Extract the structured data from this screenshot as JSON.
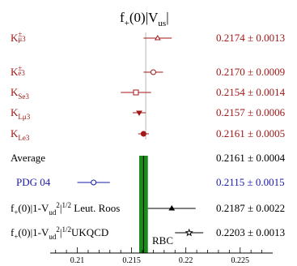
{
  "chart_data": {
    "type": "scatter",
    "title_parts": {
      "f": "f",
      "plus": "+",
      "zero": "(0)|V",
      "us": "us",
      "bar": "|"
    },
    "xlim": [
      0.2075,
      0.228
    ],
    "xticks": [
      0.21,
      0.215,
      0.22,
      0.225
    ],
    "xtick_labels": [
      "0.21",
      "0.215",
      "0.22",
      "0.225"
    ],
    "average_band": {
      "value": 0.2161,
      "error": 0.0004,
      "color": "#1a8a1a"
    },
    "colors": {
      "red": "#a01818",
      "black": "#000000",
      "blue": "#1a1aa8"
    },
    "rows": [
      {
        "label_main": "K",
        "label_sup": "±",
        "label_sub": "μ3",
        "value": 0.2174,
        "error": 0.0013,
        "value_text": "0.2174 ± 0.0013",
        "marker": "triangle-open",
        "color": "red"
      },
      {
        "label_main": "K",
        "label_sup": "±",
        "label_sub": "e3",
        "value": 0.217,
        "error": 0.0009,
        "value_text": "0.2170 ± 0.0009",
        "marker": "circle-open",
        "color": "red"
      },
      {
        "label_main": "K",
        "label_sup": "",
        "label_sub": "Se3",
        "value": 0.2154,
        "error": 0.0014,
        "value_text": "0.2154 ± 0.0014",
        "marker": "square-open",
        "color": "red"
      },
      {
        "label_main": "K",
        "label_sup": "",
        "label_sub": "Lμ3",
        "value": 0.2157,
        "error": 0.0006,
        "value_text": "0.2157 ± 0.0006",
        "marker": "triangle-down",
        "color": "red"
      },
      {
        "label_main": "K",
        "label_sup": "",
        "label_sub": "Le3",
        "value": 0.2161,
        "error": 0.0005,
        "value_text": "0.2161 ± 0.0005",
        "marker": "circle-filled",
        "color": "red"
      },
      {
        "label_main": "Average",
        "label_sup": "",
        "label_sub": "",
        "value": 0.2161,
        "error": 0.0004,
        "value_text": "0.2161 ± 0.0004",
        "marker": "none",
        "color": "black"
      },
      {
        "label_main": "PDG 04",
        "label_sup": "",
        "label_sub": "",
        "value": 0.2115,
        "error": 0.0015,
        "value_text": "0.2115 ± 0.0015",
        "marker": "circle-open",
        "color": "blue"
      },
      {
        "label_main": "f₊(0)|1-V",
        "label_sup": "",
        "label_sub": "",
        "label_formula": {
          "f": "f",
          "plus": "+",
          "mid": "(0)|1-V",
          "ud": "ud",
          "two": "2",
          "bar": "|",
          "half": "1/2",
          "tail": " Leut. Roos"
        },
        "value": 0.2187,
        "error": 0.0022,
        "value_text": "0.2187 ± 0.0022",
        "marker": "triangle-filled",
        "color": "black"
      },
      {
        "label_main": "f₊(0)|1-V",
        "label_sup": "",
        "label_sub": "",
        "label_formula": {
          "f": "f",
          "plus": "+",
          "mid": "(0)|1-V",
          "ud": "ud",
          "two": "2",
          "bar": "|",
          "half": "1/2",
          "tail": "UKQCD",
          "tail2": "RBC"
        },
        "value": 0.2203,
        "error": 0.0013,
        "value_text": "0.2203 ± 0.0013",
        "marker": "star",
        "color": "black"
      }
    ]
  }
}
